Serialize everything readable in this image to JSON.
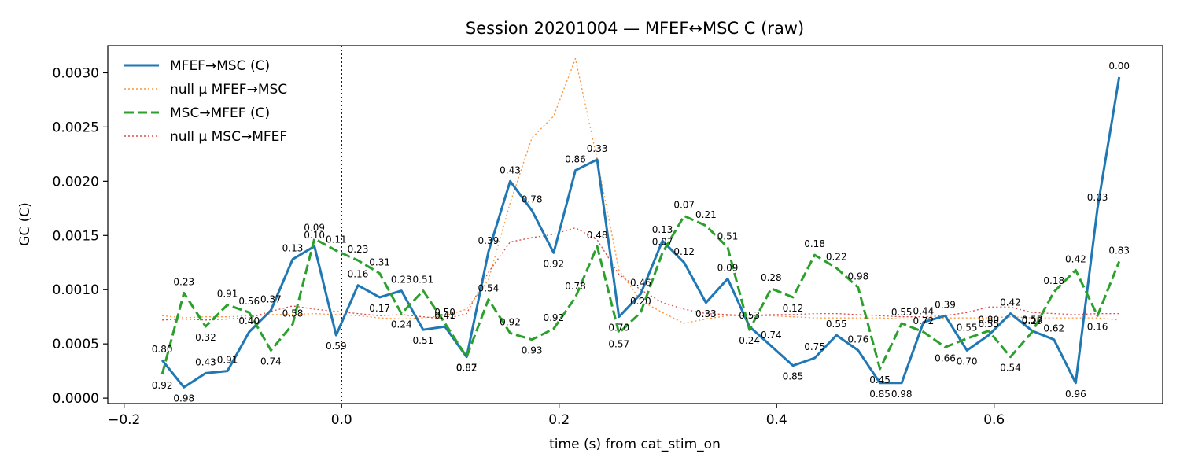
{
  "chart_data": {
    "type": "line",
    "title": "Session 20201004 — MFEF↔MSC C (raw)",
    "xlabel": "time (s) from cat_stim_on",
    "ylabel": "GC (C)",
    "xlim": [
      -0.215,
      0.755
    ],
    "ylim": [
      -5e-05,
      0.00325
    ],
    "xticks": [
      -0.2,
      0.0,
      0.2,
      0.4,
      0.6
    ],
    "xtick_labels": [
      "−0.2",
      "0.0",
      "0.2",
      "0.4",
      "0.6"
    ],
    "yticks": [
      0.0,
      0.0005,
      0.001,
      0.0015,
      0.002,
      0.0025,
      0.003
    ],
    "ytick_labels": [
      "0.0000",
      "0.0005",
      "0.0010",
      "0.0015",
      "0.0020",
      "0.0025",
      "0.0030"
    ],
    "grid": false,
    "legend_position": "top-left",
    "vline": {
      "x": 0.0,
      "style": "dotted",
      "color": "#000000"
    },
    "x": [
      -0.165,
      -0.145,
      -0.125,
      -0.105,
      -0.085,
      -0.065,
      -0.045,
      -0.025,
      -0.005,
      0.015,
      0.035,
      0.055,
      0.075,
      0.095,
      0.115,
      0.135,
      0.155,
      0.175,
      0.195,
      0.215,
      0.235,
      0.255,
      0.275,
      0.295,
      0.315,
      0.335,
      0.355,
      0.375,
      0.395,
      0.415,
      0.435,
      0.455,
      0.475,
      0.495,
      0.515,
      0.535,
      0.555,
      0.575,
      0.595,
      0.615,
      0.635,
      0.655,
      0.675,
      0.695,
      0.715
    ],
    "series": [
      {
        "name": "MFEF→MSC (C)",
        "color": "#1f77b4",
        "style": "solid",
        "values": [
          0.00035,
          0.0001,
          0.00023,
          0.00025,
          0.00061,
          0.00081,
          0.00128,
          0.0014,
          0.00058,
          0.00104,
          0.00093,
          0.00099,
          0.00063,
          0.00066,
          0.00038,
          0.00135,
          0.002,
          0.00173,
          0.00134,
          0.0021,
          0.0022,
          0.00075,
          0.00096,
          0.00145,
          0.00125,
          0.00088,
          0.0011,
          0.00066,
          0.00048,
          0.0003,
          0.00037,
          0.00058,
          0.00044,
          0.00014,
          0.00014,
          0.0007,
          0.00076,
          0.00044,
          0.00058,
          0.00078,
          0.00062,
          0.00054,
          0.00014,
          0.00175,
          0.00296
        ],
        "labels": [
          "0.80",
          "0.98",
          "0.43",
          "0.91",
          "0.40",
          "0.37",
          "0.13",
          "0.10",
          "0.59",
          "0.16",
          "0.17",
          "0.23",
          "0.51",
          "0.41",
          "0.87",
          "0.39",
          "0.43",
          "0.78",
          "0.92",
          "0.86",
          "0.33",
          "0.70",
          "0.46",
          "0.13",
          "0.12",
          "0.33",
          "0.09",
          "0.53",
          "0.74",
          "0.85",
          "0.75",
          "0.55",
          "0.76",
          "0.85",
          "0.98",
          "0.44",
          "0.39",
          "0.70",
          "0.55",
          "0.42",
          "0.57",
          "0.62",
          "0.96",
          "0.03",
          "0.00"
        ]
      },
      {
        "name": "null μ MFEF→MSC",
        "color": "#ff7f0e",
        "style": "dotted",
        "values": [
          0.00076,
          0.00074,
          0.00075,
          0.00075,
          0.00076,
          0.00077,
          0.00077,
          0.00078,
          0.00077,
          0.00076,
          0.00074,
          0.00073,
          0.00074,
          0.00076,
          0.00082,
          0.00109,
          0.0018,
          0.0024,
          0.0026,
          0.00313,
          0.0022,
          0.00118,
          0.0009,
          0.00079,
          0.00069,
          0.00073,
          0.00076,
          0.00076,
          0.00076,
          0.00075,
          0.00074,
          0.00074,
          0.00074,
          0.00074,
          0.00073,
          0.00073,
          0.00074,
          0.00074,
          0.00074,
          0.00075,
          0.00074,
          0.00074,
          0.00074,
          0.00074,
          0.00072
        ]
      },
      {
        "name": "MSC→MFEF (C)",
        "color": "#2ca02c",
        "style": "dashed",
        "values": [
          0.00022,
          0.00097,
          0.00066,
          0.00086,
          0.00079,
          0.00044,
          0.00068,
          0.00147,
          0.00136,
          0.00127,
          0.00115,
          0.00078,
          0.00099,
          0.00069,
          0.00038,
          0.00091,
          0.0006,
          0.00054,
          0.00064,
          0.00093,
          0.0014,
          0.0006,
          0.00079,
          0.00134,
          0.00168,
          0.00159,
          0.00139,
          0.00063,
          0.00101,
          0.00093,
          0.00132,
          0.0012,
          0.00102,
          0.00027,
          0.00069,
          0.00061,
          0.00047,
          0.00055,
          0.00062,
          0.00038,
          0.00061,
          0.00098,
          0.00118,
          0.00076,
          0.00126
        ],
        "labels": [
          "0.92",
          "0.23",
          "0.32",
          "0.91",
          "0.56",
          "0.74",
          "0.58",
          "0.09",
          "0.11",
          "0.23",
          "0.31",
          "0.24",
          "0.51",
          "0.50",
          "0.82",
          "0.54",
          "0.92",
          "0.93",
          "0.92",
          "0.78",
          "0.48",
          "0.57",
          "0.20",
          "0.07",
          "0.07",
          "0.21",
          "0.51",
          "0.24",
          "0.28",
          "0.12",
          "0.18",
          "0.22",
          "0.98",
          "0.45",
          "0.55",
          "0.72",
          "0.66",
          "0.55",
          "0.80",
          "0.54",
          "0.29",
          "0.18",
          "0.42",
          "0.16",
          "0.83"
        ]
      },
      {
        "name": "null μ MSC→MFEF",
        "color": "#d62728",
        "style": "dotted",
        "values": [
          0.00072,
          0.00073,
          0.00072,
          0.00073,
          0.00074,
          0.0008,
          0.00085,
          0.00082,
          0.0008,
          0.00078,
          0.00076,
          0.00077,
          0.00075,
          0.00073,
          0.00078,
          0.00116,
          0.00144,
          0.00148,
          0.00151,
          0.00157,
          0.00146,
          0.00114,
          0.001,
          0.00088,
          0.00082,
          0.00078,
          0.00077,
          0.00076,
          0.00077,
          0.00077,
          0.00078,
          0.00078,
          0.00077,
          0.00076,
          0.00075,
          0.00075,
          0.00076,
          0.00079,
          0.00084,
          0.00084,
          0.00079,
          0.00078,
          0.00077,
          0.00078,
          0.00078
        ]
      }
    ]
  }
}
